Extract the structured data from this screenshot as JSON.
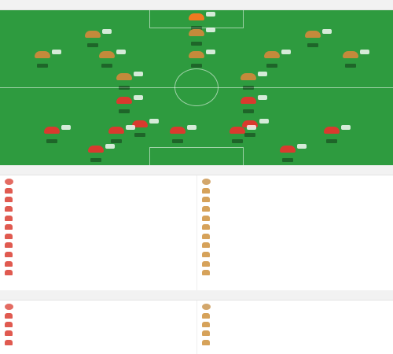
{
  "lineup": {
    "title": "",
    "subtitle": "",
    "home": {
      "name": "",
      "formation": "",
      "formation_detail": "",
      "coach_label": "",
      "coach_sub": ""
    },
    "away": {
      "name": "",
      "formation": "",
      "formation_detail": "",
      "coach_label": "",
      "coach_sub": ""
    },
    "center_badge": "",
    "info_lines": [
      "",
      ""
    ],
    "colors": {
      "pitch": "#2e9b3f",
      "home_kit": "#d93a2e",
      "away_kit": "#c48a3b",
      "gk_kit": "#f07a20"
    },
    "away_players": [
      {
        "name": ""
      },
      {
        "name": ""
      },
      {
        "name": ""
      },
      {
        "name": ""
      },
      {
        "name": ""
      },
      {
        "name": ""
      },
      {
        "name": ""
      },
      {
        "name": ""
      },
      {
        "name": ""
      },
      {
        "name": ""
      },
      {
        "name": ""
      }
    ],
    "home_players": [
      {
        "name": ""
      },
      {
        "name": ""
      },
      {
        "name": ""
      },
      {
        "name": ""
      },
      {
        "name": ""
      },
      {
        "name": ""
      },
      {
        "name": ""
      },
      {
        "name": ""
      },
      {
        "name": ""
      },
      {
        "name": ""
      },
      {
        "name": ""
      }
    ]
  },
  "subs": {
    "title": "",
    "home": {
      "team": "",
      "team_sub": "",
      "players": [
        {
          "name": "",
          "meta": "",
          "tag": ""
        },
        {
          "name": "",
          "meta": "",
          "tag": ""
        },
        {
          "name": "",
          "meta": "",
          "tag": ""
        },
        {
          "name": "",
          "meta": "",
          "tag": ""
        },
        {
          "name": "",
          "meta": "",
          "tag": ""
        },
        {
          "name": "",
          "meta": "",
          "tag": ""
        },
        {
          "name": "",
          "meta": "",
          "tag": ""
        },
        {
          "name": "",
          "meta": "",
          "tag": ""
        },
        {
          "name": "",
          "meta": "",
          "tag": ""
        },
        {
          "name": "",
          "meta": "",
          "tag": ""
        }
      ]
    },
    "away": {
      "team": "",
      "team_sub": "",
      "players": [
        {
          "name": "",
          "meta": "",
          "tag": ""
        },
        {
          "name": "",
          "meta": "",
          "tag": ""
        },
        {
          "name": "",
          "meta": "",
          "tag": ""
        },
        {
          "name": "",
          "meta": "",
          "tag": ""
        },
        {
          "name": "",
          "meta": "",
          "tag": ""
        },
        {
          "name": "",
          "meta": "",
          "tag": ""
        },
        {
          "name": "",
          "meta": "",
          "tag": ""
        },
        {
          "name": "",
          "meta": "",
          "tag": ""
        },
        {
          "name": "",
          "meta": "",
          "tag": ""
        },
        {
          "name": "",
          "meta": "",
          "tag": ""
        }
      ]
    }
  },
  "staff": {
    "title": "",
    "home": {
      "team": "",
      "rows": [
        {
          "name": "",
          "meta": ""
        },
        {
          "name": "",
          "meta": ""
        },
        {
          "name": "",
          "meta": ""
        },
        {
          "name": "",
          "meta": ""
        }
      ]
    },
    "away": {
      "team": "",
      "rows": [
        {
          "name": "",
          "meta": ""
        },
        {
          "name": "",
          "meta": ""
        },
        {
          "name": "",
          "meta": ""
        },
        {
          "name": "",
          "meta": ""
        }
      ]
    }
  }
}
